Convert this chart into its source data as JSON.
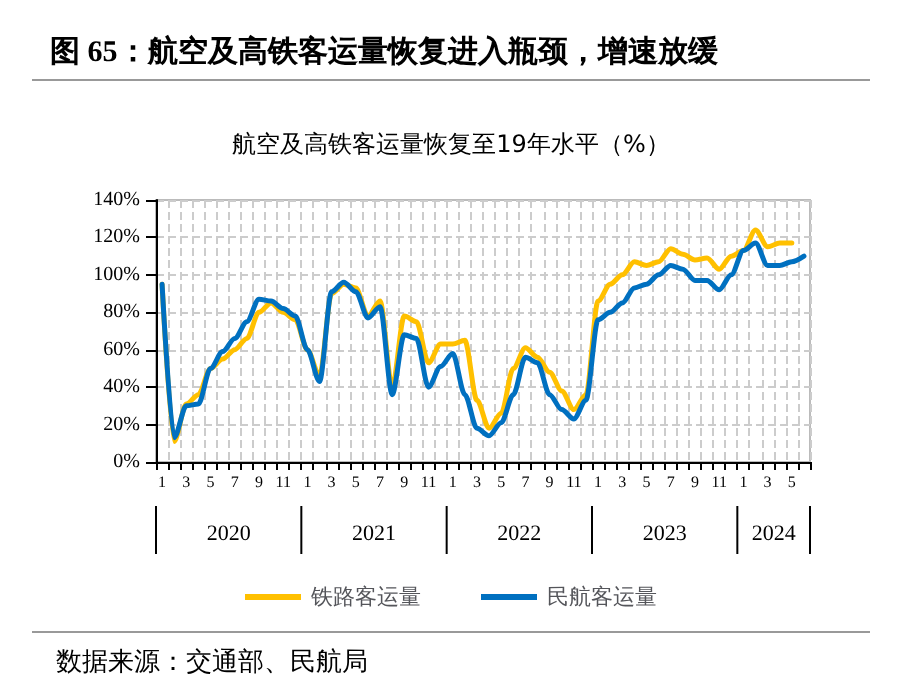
{
  "chart_data": {
    "type": "line",
    "title": "图 65：航空及高铁客运量恢复进入瓶颈，增速放缓",
    "subtitle": "航空及高铁客运量恢复至19年水平（%）",
    "categories": [
      "1",
      null,
      "3",
      null,
      "5",
      null,
      "7",
      null,
      "9",
      null,
      "11",
      null,
      "1",
      null,
      "3",
      null,
      "5",
      null,
      "7",
      null,
      "9",
      null,
      "11",
      null,
      "1",
      null,
      "3",
      null,
      "5",
      null,
      "7",
      null,
      "9",
      null,
      "11",
      null,
      "1",
      null,
      "3",
      null,
      "5",
      null,
      "7",
      null,
      "9",
      null,
      "11",
      null,
      "1",
      null,
      "3",
      null,
      "5",
      null
    ],
    "series": [
      {
        "name": "铁路客运量",
        "color": "#ffc000",
        "values": [
          95,
          11,
          31,
          36,
          50,
          55,
          60,
          66,
          80,
          85,
          80,
          76,
          60,
          46,
          90,
          95,
          93,
          78,
          86,
          40,
          78,
          75,
          53,
          63,
          63,
          65,
          33,
          18,
          26,
          50,
          61,
          56,
          48,
          38,
          28,
          36,
          86,
          95,
          100,
          107,
          105,
          107,
          114,
          111,
          108,
          109,
          103,
          110,
          113,
          124,
          115,
          117,
          117,
          null
        ]
      },
      {
        "name": "民航客运量",
        "color": "#0070c0",
        "values": [
          95,
          13,
          30,
          31,
          50,
          59,
          66,
          75,
          87,
          86,
          82,
          78,
          60,
          43,
          91,
          96,
          91,
          77,
          83,
          36,
          68,
          66,
          40,
          51,
          58,
          36,
          18,
          14,
          21,
          36,
          56,
          53,
          36,
          28,
          23,
          33,
          76,
          80,
          85,
          93,
          95,
          100,
          105,
          103,
          97,
          97,
          92,
          100,
          113,
          117,
          105,
          105,
          107,
          110
        ]
      }
    ],
    "ylim": [
      0,
      140
    ],
    "yticks": [
      {
        "value": 0,
        "label": "0%"
      },
      {
        "value": 20,
        "label": "20%"
      },
      {
        "value": 40,
        "label": "40%"
      },
      {
        "value": 60,
        "label": "60%"
      },
      {
        "value": 80,
        "label": "80%"
      },
      {
        "value": 100,
        "label": "100%"
      },
      {
        "value": 120,
        "label": "120%"
      },
      {
        "value": 140,
        "label": "140%"
      }
    ],
    "grid": true,
    "legend": "bottom",
    "marker": "none",
    "line_style": "solid",
    "annotations": [
      "数据来源：交通部、民航局",
      "2020",
      "2021",
      "2022",
      "2023",
      "2024"
    ]
  }
}
